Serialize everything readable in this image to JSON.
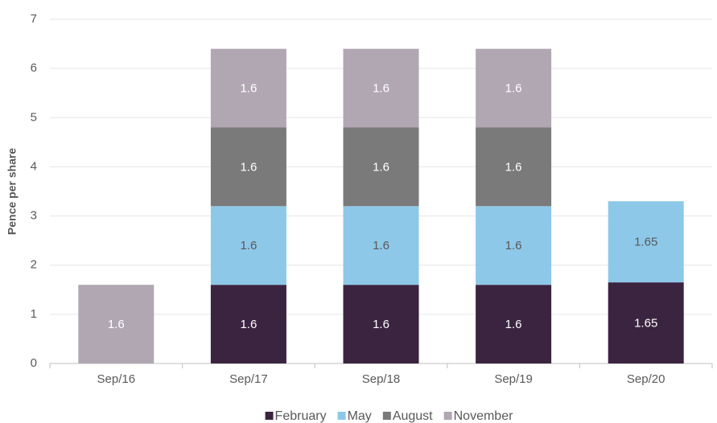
{
  "chart_data": {
    "type": "stacked_bar",
    "y_label": "Pence per share",
    "categories": [
      "Sep/16",
      "Sep/17",
      "Sep/18",
      "Sep/19",
      "Sep/20"
    ],
    "series": [
      {
        "name": "February",
        "color": "#3b2440",
        "values": [
          null,
          1.6,
          1.6,
          1.6,
          1.65
        ]
      },
      {
        "name": "May",
        "color": "#8ec8e8",
        "values": [
          null,
          1.6,
          1.6,
          1.6,
          1.65
        ]
      },
      {
        "name": "August",
        "color": "#7a7a7a",
        "values": [
          null,
          1.6,
          1.6,
          1.6,
          null
        ]
      },
      {
        "name": "November",
        "color": "#b1a7b3",
        "values": [
          1.6,
          1.6,
          1.6,
          1.6,
          null
        ]
      }
    ],
    "ylim": [
      0,
      7
    ],
    "yticks": [
      0,
      1,
      2,
      3,
      4,
      5,
      6,
      7
    ],
    "grid": true,
    "legend": "bottom"
  }
}
